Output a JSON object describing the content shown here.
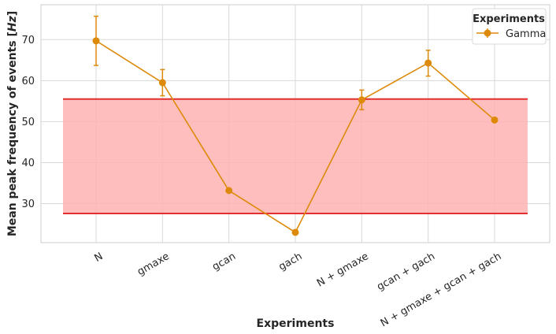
{
  "chart_data": {
    "type": "line",
    "xlabel": "Experiments",
    "ylabel": "Mean peak frequency of events [Hz]",
    "ylabel_parts": {
      "prefix": "Mean peak frequency of events [",
      "unit": "Hz",
      "suffix": "]"
    },
    "categories": [
      "N",
      "gmaxe",
      "gcan",
      "gach",
      "N + gmaxe",
      "gcan + gach",
      "N + gmaxe + gcan + gach"
    ],
    "yticks": [
      30,
      40,
      50,
      60,
      70
    ],
    "ylim": [
      20.5,
      78.5
    ],
    "grid": true,
    "legend": {
      "title": "Experiments",
      "placement": "top-right"
    },
    "series": [
      {
        "name": "Gamma",
        "color": "#dd8a0a",
        "values": [
          69.7,
          59.5,
          33.2,
          23.0,
          55.3,
          64.3,
          50.4
        ],
        "err_low": [
          63.7,
          56.3,
          null,
          null,
          52.9,
          61.1,
          null
        ],
        "err_high": [
          75.7,
          62.7,
          null,
          null,
          57.7,
          67.4,
          null
        ]
      }
    ],
    "band": {
      "low": 27.6,
      "high": 55.5,
      "fill": "#ffb3b3",
      "line": "#e03030"
    }
  }
}
